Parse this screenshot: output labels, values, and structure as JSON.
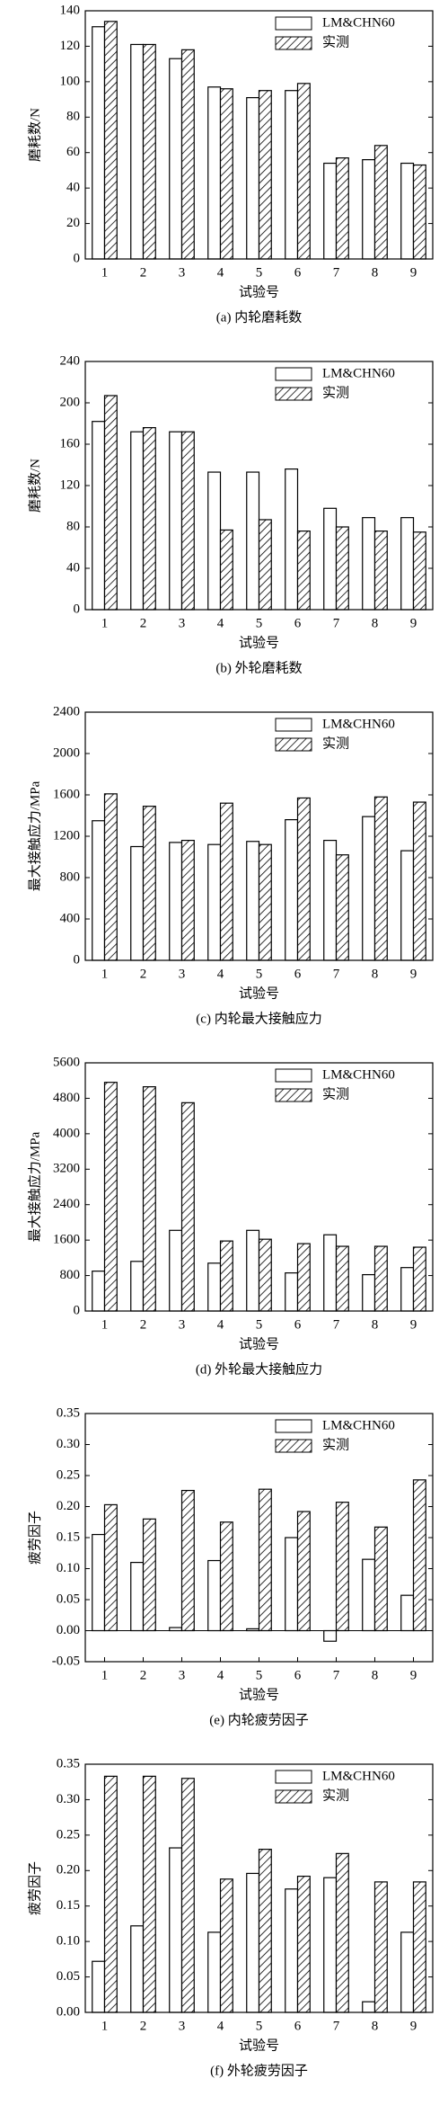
{
  "chart_data": [
    {
      "type": "bar",
      "caption": "(a) 内轮磨耗数",
      "xlabel": "试验号",
      "ylabel": "磨耗数/N",
      "categories": [
        "1",
        "2",
        "3",
        "4",
        "5",
        "6",
        "7",
        "8",
        "9"
      ],
      "series": [
        {
          "name": "LM&CHN60",
          "color": "#000000",
          "pattern": "none",
          "values": [
            131,
            121,
            113,
            97,
            91,
            95,
            54,
            56,
            54
          ]
        },
        {
          "name": "实测",
          "color": "#000000",
          "pattern": "hatch",
          "values": [
            134,
            121,
            118,
            96,
            95,
            99,
            57,
            64,
            53
          ]
        }
      ],
      "ylim": [
        0,
        140
      ],
      "yticks": [
        0,
        20,
        40,
        60,
        80,
        100,
        120,
        140
      ],
      "legend": "upper right"
    },
    {
      "type": "bar",
      "caption": "(b) 外轮磨耗数",
      "xlabel": "试验号",
      "ylabel": "磨耗数/N",
      "categories": [
        "1",
        "2",
        "3",
        "4",
        "5",
        "6",
        "7",
        "8",
        "9"
      ],
      "series": [
        {
          "name": "LM&CHN60",
          "color": "#000000",
          "pattern": "none",
          "values": [
            182,
            172,
            172,
            133,
            133,
            136,
            98,
            89,
            89
          ]
        },
        {
          "name": "实测",
          "color": "#000000",
          "pattern": "hatch",
          "values": [
            207,
            176,
            172,
            77,
            87,
            76,
            80,
            76,
            75
          ]
        }
      ],
      "ylim": [
        0,
        240
      ],
      "yticks": [
        0,
        40,
        80,
        120,
        160,
        200,
        240
      ],
      "legend": "upper right"
    },
    {
      "type": "bar",
      "caption": "(c) 内轮最大接触应力",
      "xlabel": "试验号",
      "ylabel": "最大接触应力/MPa",
      "categories": [
        "1",
        "2",
        "3",
        "4",
        "5",
        "6",
        "7",
        "8",
        "9"
      ],
      "series": [
        {
          "name": "LM&CHN60",
          "color": "#000000",
          "pattern": "none",
          "values": [
            1350,
            1100,
            1140,
            1120,
            1150,
            1360,
            1160,
            1390,
            1060
          ]
        },
        {
          "name": "实测",
          "color": "#000000",
          "pattern": "hatch",
          "values": [
            1610,
            1490,
            1160,
            1520,
            1120,
            1570,
            1020,
            1580,
            1530
          ]
        }
      ],
      "ylim": [
        0,
        2400
      ],
      "yticks": [
        0,
        400,
        800,
        1200,
        1600,
        2000,
        2400
      ],
      "legend": "upper right"
    },
    {
      "type": "bar",
      "caption": "(d) 外轮最大接触应力",
      "xlabel": "试验号",
      "ylabel": "最大接触应力/MPa",
      "categories": [
        "1",
        "2",
        "3",
        "4",
        "5",
        "6",
        "7",
        "8",
        "9"
      ],
      "series": [
        {
          "name": "LM&CHN60",
          "color": "#000000",
          "pattern": "none",
          "values": [
            900,
            1120,
            1820,
            1080,
            1820,
            860,
            1720,
            820,
            980
          ]
        },
        {
          "name": "实测",
          "color": "#000000",
          "pattern": "hatch",
          "values": [
            5160,
            5060,
            4700,
            1580,
            1620,
            1520,
            1460,
            1460,
            1440
          ]
        }
      ],
      "ylim": [
        0,
        5600
      ],
      "yticks": [
        0,
        800,
        1600,
        2400,
        3200,
        4000,
        4800,
        5600
      ],
      "legend": "upper right"
    },
    {
      "type": "bar",
      "caption": "(e) 内轮疲劳因子",
      "xlabel": "试验号",
      "ylabel": "疲劳因子",
      "categories": [
        "1",
        "2",
        "3",
        "4",
        "5",
        "6",
        "7",
        "8",
        "9"
      ],
      "series": [
        {
          "name": "LM&CHN60",
          "color": "#000000",
          "pattern": "none",
          "values": [
            0.155,
            0.11,
            0.005,
            0.113,
            0.003,
            0.15,
            -0.017,
            0.115,
            0.057
          ]
        },
        {
          "name": "实测",
          "color": "#000000",
          "pattern": "hatch",
          "values": [
            0.203,
            0.18,
            0.226,
            0.175,
            0.228,
            0.192,
            0.207,
            0.167,
            0.243
          ]
        }
      ],
      "ylim": [
        -0.05,
        0.35
      ],
      "yticks": [
        -0.05,
        {
          "value": 0,
          "label": "0.00"
        },
        0.05,
        {
          "value": 0.1,
          "label": "0.10"
        },
        0.15,
        {
          "value": 0.2,
          "label": "0.20"
        },
        0.25,
        {
          "value": 0.3,
          "label": "0.30"
        },
        0.35
      ],
      "legend": "upper right"
    },
    {
      "type": "bar",
      "caption": "(f) 外轮疲劳因子",
      "xlabel": "试验号",
      "ylabel": "疲劳因子",
      "categories": [
        "1",
        "2",
        "3",
        "4",
        "5",
        "6",
        "7",
        "8",
        "9"
      ],
      "series": [
        {
          "name": "LM&CHN60",
          "color": "#000000",
          "pattern": "none",
          "values": [
            0.072,
            0.122,
            0.232,
            0.113,
            0.196,
            0.174,
            0.19,
            0.015,
            0.113
          ]
        },
        {
          "name": "实测",
          "color": "#000000",
          "pattern": "hatch",
          "values": [
            0.333,
            0.333,
            0.33,
            0.188,
            0.23,
            0.192,
            0.224,
            0.184,
            0.184
          ]
        }
      ],
      "ylim": [
        0,
        0.35
      ],
      "yticks": [
        {
          "value": 0,
          "label": "0.00"
        },
        0.05,
        {
          "value": 0.1,
          "label": "0.10"
        },
        0.15,
        {
          "value": 0.2,
          "label": "0.20"
        },
        0.25,
        {
          "value": 0.3,
          "label": "0.30"
        },
        0.35
      ],
      "legend": "upper right"
    }
  ]
}
